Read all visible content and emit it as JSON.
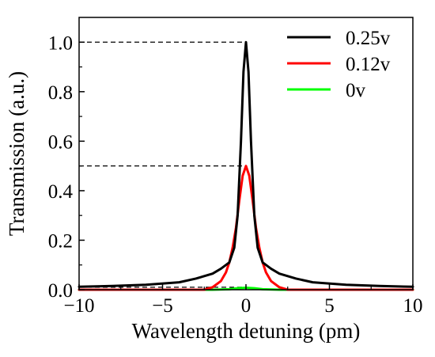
{
  "chart_data": {
    "type": "line",
    "xlabel": "Wavelength detuning (pm)",
    "ylabel": "Transmission (a.u.)",
    "xlim": [
      -10,
      10
    ],
    "ylim": [
      0,
      1.1
    ],
    "xticks": [
      -10,
      -5,
      0,
      5,
      10
    ],
    "xtick_labels": [
      "−10",
      "−5",
      "0",
      "5",
      "10"
    ],
    "yticks": [
      0.0,
      0.2,
      0.4,
      0.6,
      0.8,
      1.0
    ],
    "ytick_labels": [
      "0.0",
      "0.2",
      "0.4",
      "0.6",
      "0.8",
      "1.0"
    ],
    "grid": false,
    "legend_position": "top-right",
    "reference_lines": [
      {
        "y": 1.0,
        "x_from": -10,
        "x_to": 0,
        "style": "dashed"
      },
      {
        "y": 0.5,
        "x_from": -10,
        "x_to": 0,
        "style": "dashed"
      },
      {
        "y": 0.01,
        "x_from": -10,
        "x_to": 0,
        "style": "dashed"
      }
    ],
    "series": [
      {
        "name": "0.25v",
        "color": "#000000",
        "x": [
          -10,
          -8,
          -6,
          -4,
          -3,
          -2,
          -1.5,
          -1,
          -0.7,
          -0.5,
          -0.3,
          -0.15,
          0,
          0.15,
          0.3,
          0.5,
          0.7,
          1,
          1.5,
          2,
          3,
          4,
          6,
          8,
          10
        ],
        "y": [
          0.012,
          0.015,
          0.02,
          0.03,
          0.045,
          0.065,
          0.085,
          0.11,
          0.17,
          0.3,
          0.6,
          0.88,
          1.0,
          0.88,
          0.6,
          0.3,
          0.17,
          0.11,
          0.085,
          0.065,
          0.045,
          0.03,
          0.02,
          0.015,
          0.012
        ]
      },
      {
        "name": "0.12v",
        "color": "#ff0000",
        "x": [
          -10,
          -3,
          -2.5,
          -2,
          -1.5,
          -1.2,
          -1,
          -0.8,
          -0.6,
          -0.4,
          -0.2,
          0,
          0.2,
          0.4,
          0.6,
          0.8,
          1,
          1.2,
          1.5,
          2,
          2.5,
          3,
          10
        ],
        "y": [
          0.0,
          0.0,
          0.0,
          0.01,
          0.035,
          0.07,
          0.11,
          0.17,
          0.25,
          0.36,
          0.46,
          0.5,
          0.46,
          0.36,
          0.25,
          0.17,
          0.11,
          0.07,
          0.035,
          0.01,
          0.0,
          0.0,
          0.0
        ]
      },
      {
        "name": "0v",
        "color": "#00ff00",
        "x": [
          -10,
          -2,
          -1,
          -0.5,
          0,
          0.5,
          1,
          2,
          10
        ],
        "y": [
          0.0,
          0.0,
          0.002,
          0.006,
          0.008,
          0.006,
          0.002,
          0.0,
          0.0
        ]
      }
    ]
  }
}
